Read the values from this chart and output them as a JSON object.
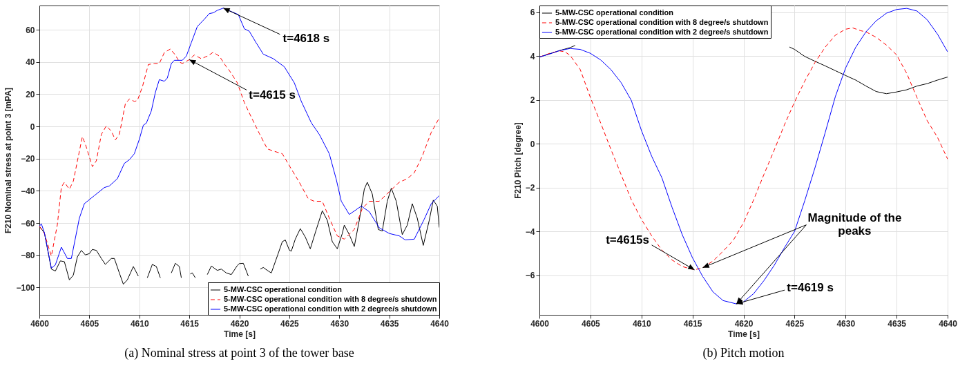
{
  "chart_data": [
    {
      "type": "line",
      "title": "(a)  Nominal stress at point 3 of the tower base",
      "xlabel": "Time [s]",
      "ylabel": "F210 Nominal stress at point 3 [mPA]",
      "xlim": [
        4600,
        4640
      ],
      "ylim": [
        -117,
        75
      ],
      "xticks": [
        4600,
        4605,
        4610,
        4615,
        4620,
        4625,
        4630,
        4635,
        4640
      ],
      "yticks": [
        -100,
        -80,
        -60,
        -40,
        -20,
        0,
        20,
        40,
        60
      ],
      "grid": true,
      "legend": "bottom right",
      "annotations": [
        {
          "text": "t=4618 s",
          "x": 4618.4,
          "y": 73.4
        },
        {
          "text": "t=4615 s",
          "x": 4615,
          "y": 41.4
        }
      ],
      "series": [
        {
          "name": "5-MW-CSC operational condition",
          "color": "#000000",
          "line_style": "solid",
          "x": [
            4600,
            4600.5,
            4601.2,
            4601.6,
            4602.1,
            4602.5,
            4603,
            4603.4,
            4603.8,
            4604.2,
            4604.6,
            4605,
            4605.3,
            4605.7,
            4606.2,
            4606.6,
            4607.2,
            4607.5,
            4608,
            4608.4,
            4608.8,
            4609.4,
            4609.9,
            4610.3,
            4610.8,
            4611.3,
            4611.7,
            4612.1,
            4612.6,
            4613.2,
            4613.6,
            4614,
            4614.2,
            4614.6,
            4615.1,
            4615.3,
            4615.6,
            4616.2,
            4616.8,
            4617.2,
            4617.8,
            4618.2,
            4618.7,
            4619.2,
            4619.8,
            4620,
            4620.4,
            4620.9,
            4621.3,
            4622.1,
            4622.4,
            4622.8,
            4623.2,
            4623.8,
            4624.3,
            4624.6,
            4625,
            4625.2,
            4625.6,
            4626.1,
            4626.6,
            4627.1,
            4627.7,
            4628.3,
            4628.8,
            4629.3,
            4629.8,
            4630.3,
            4630.5,
            4631,
            4631.5,
            4632,
            4632.5,
            4632.8,
            4633.3,
            4633.9,
            4634.3,
            4634.8,
            4635.2,
            4635.7,
            4636.3,
            4636.8,
            4637.3,
            4637.8,
            4638.4,
            4639,
            4639.4,
            4639.8,
            4640
          ],
          "values": [
            -62,
            -66,
            -88.6,
            -89.8,
            -83.5,
            -84,
            -95.3,
            -92.3,
            -81,
            -77,
            -79.8,
            -79,
            -76.4,
            -77,
            -82,
            -85.7,
            -82,
            -82,
            -91,
            -98,
            -95.3,
            -87,
            -93,
            null,
            -94,
            -85.7,
            -87,
            -94,
            null,
            -91,
            -85,
            -87,
            -94,
            null,
            -91.6,
            -91,
            -94,
            null,
            -92,
            -86.7,
            -89.4,
            -88.6,
            -91,
            -92,
            -86.4,
            -85.2,
            -85,
            -93,
            null,
            -88.6,
            -87.6,
            -89.4,
            -91,
            -80.5,
            -71.6,
            -70.5,
            -76.8,
            -77.5,
            -70,
            -63.5,
            -68.7,
            -76,
            -64,
            -52.4,
            -58.3,
            -71.6,
            -76,
            -66.5,
            -61.3,
            -67.2,
            -74.6,
            -58.3,
            -39,
            -34.7,
            -42,
            -64,
            -65,
            -46.5,
            -38.4,
            -46.5,
            -67.2,
            -61.3,
            -48,
            -57,
            -73.9,
            -58.3,
            -45.8,
            -49.5,
            -62.8
          ]
        },
        {
          "name": "5-MW-CSC operational condition with 8 degree/s shutdown",
          "color": "#ff0000",
          "line_style": "dashed",
          "x": [
            4600,
            4600.5,
            4601.2,
            4601.8,
            4602.2,
            4602.5,
            4603,
            4603.4,
            4604,
            4604.3,
            4604.6,
            4605.3,
            4605.7,
            4606.2,
            4606.7,
            4607.2,
            4607.6,
            4608,
            4608.6,
            4609,
            4609.5,
            4609.8,
            4610.3,
            4610.9,
            4611.5,
            4612,
            4612.5,
            4613.1,
            4613.6,
            4614,
            4614.3,
            4615,
            4615.5,
            4616.2,
            4616.8,
            4617.4,
            4618,
            4618.7,
            4619,
            4619.8,
            4620.5,
            4621.3,
            4622,
            4622.8,
            4623.5,
            4624.3,
            4625,
            4626,
            4626.9,
            4627.5,
            4628.3,
            4629,
            4629.8,
            4630.5,
            4631.5,
            4632.3,
            4633,
            4634,
            4635,
            4636,
            4636.8,
            4637.5,
            4638.3,
            4639.2,
            4640
          ],
          "values": [
            -62,
            -66.5,
            -80.5,
            -61,
            -37.7,
            -34.7,
            -39,
            -34,
            -15.5,
            -6.4,
            -11,
            -25,
            -21.4,
            -5,
            0.3,
            -3,
            -8.4,
            -5,
            14,
            17,
            15.5,
            16,
            24.4,
            38.4,
            39,
            39,
            45.8,
            48,
            44.3,
            40,
            39,
            41.4,
            44.3,
            42,
            43.6,
            46,
            43.6,
            37,
            34.7,
            27,
            14.8,
            4.4,
            -4.4,
            -14,
            -15.5,
            -17,
            -24.4,
            -34.7,
            -45,
            -46.5,
            -46.5,
            -57,
            -68,
            -70,
            -64,
            -51,
            -46.5,
            -46.5,
            -40.6,
            -34.7,
            -32.5,
            -28.8,
            -18.5,
            -3.7,
            5.2
          ]
        },
        {
          "name": "5-MW-CSC operational condition with 2 degree/s shutdown",
          "color": "#0000ff",
          "line_style": "solid",
          "x": [
            4600,
            4600.2,
            4600.5,
            4601.2,
            4601.6,
            4602.2,
            4602.8,
            4603.2,
            4604,
            4604.5,
            4605.5,
            4606.5,
            4607,
            4607.8,
            4608.5,
            4609,
            4609.5,
            4610,
            4610.4,
            4610.7,
            4611.2,
            4611.6,
            4612,
            4612.5,
            4612.8,
            4613.2,
            4613.5,
            4614.3,
            4614.7,
            4615.2,
            4615.8,
            4616.5,
            4617,
            4617.4,
            4617.8,
            4618.4,
            4619.9,
            4620.5,
            4621,
            4621.7,
            4622.4,
            4623.4,
            4624.5,
            4625.5,
            4626.2,
            4627.2,
            4628,
            4629,
            4629.7,
            4630.2,
            4631,
            4632.2,
            4633,
            4634,
            4635,
            4636,
            4636.6,
            4637.5,
            4638.5,
            4639.2,
            4640
          ],
          "values": [
            -62,
            -60.5,
            -66,
            -88,
            -86,
            -75,
            -82,
            -82,
            -57,
            -48,
            -43,
            -38,
            -37,
            -32.5,
            -23,
            -20.7,
            -17,
            -8,
            0.7,
            2,
            9.6,
            21,
            29,
            28,
            30,
            39,
            41,
            41,
            43.6,
            52,
            62,
            66.5,
            70,
            70.5,
            72,
            73.4,
            69.4,
            60.6,
            59,
            51.7,
            44.8,
            42,
            37,
            27,
            15.5,
            2.2,
            -5,
            -17,
            -33,
            -46.5,
            -54.7,
            -49.5,
            -53,
            -63,
            -66.5,
            -68,
            -70.5,
            -70,
            -57.6,
            -48,
            -43
          ]
        }
      ]
    },
    {
      "type": "line",
      "title": "(b) Pitch motion",
      "xlabel": "Time [s]",
      "ylabel": "F210 Pitch [degree]",
      "xlim": [
        4600,
        4640
      ],
      "ylim": [
        -7.8,
        6.3
      ],
      "xticks": [
        4600,
        4605,
        4610,
        4615,
        4620,
        4625,
        4630,
        4635,
        4640
      ],
      "yticks": [
        -6,
        -4,
        -2,
        0,
        2,
        4,
        6
      ],
      "grid": true,
      "legend": "top left",
      "annotations": [
        {
          "text": "t=4615s",
          "x": 4615.2,
          "y": -5.75
        },
        {
          "text": "Magnitude of the peaks",
          "x": 4616,
          "y": -5.65
        },
        {
          "text": "t=4619 s",
          "x": 4619.3,
          "y": -7.3
        }
      ],
      "series": [
        {
          "name": "5-MW-CSC operational condition",
          "color": "#000000",
          "line_style": "solid",
          "x": [
            4600,
            4601,
            4602,
            4603,
            4603.5,
            4614,
            4624.5,
            4625,
            4626,
            4627,
            4628,
            4629,
            4630,
            4631,
            4632,
            4633,
            4634,
            4635,
            4636,
            4637,
            4638,
            4639,
            4640
          ],
          "values": [
            3.95,
            4.1,
            4.25,
            4.38,
            4.48,
            null,
            4.41,
            4.3,
            3.98,
            3.76,
            3.55,
            3.33,
            3.11,
            2.9,
            2.63,
            2.38,
            2.28,
            2.36,
            2.46,
            2.63,
            2.74,
            2.9,
            3.04
          ]
        },
        {
          "name": "5-MW-CSC operational condition with 8 degree/s shutdown",
          "color": "#ff0000",
          "line_style": "dashed",
          "x": [
            4600,
            4601,
            4602,
            4602.5,
            4603,
            4604,
            4605,
            4606,
            4607,
            4608,
            4609,
            4610,
            4611,
            4612,
            4613,
            4614,
            4615.2,
            4616,
            4617,
            4618,
            4619,
            4620,
            4621,
            4622,
            4623,
            4624,
            4625,
            4626,
            4627,
            4628,
            4629,
            4630,
            4630.7,
            4631.5,
            4632,
            4633,
            4634,
            4635,
            4636,
            4637,
            4638,
            4639,
            4640
          ],
          "values": [
            3.95,
            4.12,
            4.23,
            4.19,
            4.03,
            3.38,
            2.1,
            0.95,
            -0.25,
            -1.4,
            -2.55,
            -3.45,
            -4.2,
            -4.85,
            -5.3,
            -5.6,
            -5.75,
            -5.65,
            -5.35,
            -4.9,
            -4.4,
            -3.6,
            -2.55,
            -1.4,
            -0.3,
            0.85,
            1.9,
            2.85,
            3.7,
            4.4,
            4.95,
            5.22,
            5.28,
            5.15,
            5.1,
            4.85,
            4.5,
            4.05,
            3.2,
            2.1,
            1.05,
            0.3,
            -0.7
          ]
        },
        {
          "name": "5-MW-CSC operational condition with 2 degree/s shutdown",
          "color": "#0000ff",
          "line_style": "solid",
          "x": [
            4600,
            4601,
            4602,
            4603,
            4604,
            4605,
            4606,
            4607,
            4608,
            4609,
            4610,
            4611,
            4612,
            4613,
            4614,
            4615,
            4616,
            4617,
            4618,
            4619.3,
            4620,
            4621,
            4622,
            4623,
            4624,
            4625,
            4626,
            4627,
            4628,
            4629,
            4630,
            4631,
            4632,
            4633,
            4634,
            4635,
            4636,
            4637,
            4638,
            4639,
            4640
          ],
          "values": [
            3.95,
            4.09,
            4.25,
            4.34,
            4.3,
            4.12,
            3.82,
            3.38,
            2.79,
            1.98,
            0.6,
            -0.57,
            -1.55,
            -2.9,
            -4.15,
            -5.2,
            -6.05,
            -6.75,
            -7.15,
            -7.3,
            -7.21,
            -6.83,
            -6.24,
            -5.55,
            -4.75,
            -4,
            -2.6,
            -1.1,
            0.5,
            2.15,
            3.45,
            4.4,
            5.1,
            5.6,
            5.95,
            6.12,
            6.17,
            6.05,
            5.65,
            5,
            4.19
          ]
        }
      ]
    }
  ]
}
